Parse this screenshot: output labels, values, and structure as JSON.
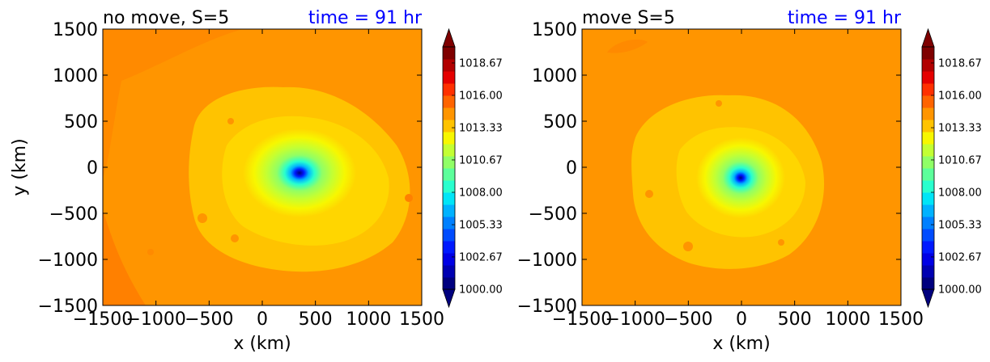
{
  "colors": {
    "title_right": "#0000ff",
    "text": "#000000",
    "colorbar": [
      "#00007f",
      "#0000b2",
      "#0000e5",
      "#0019ff",
      "#004cff",
      "#0080ff",
      "#00b2ff",
      "#00e5f7",
      "#29ffce",
      "#5cff9b",
      "#90ff66",
      "#c3ff33",
      "#f7f700",
      "#ffc300",
      "#ff9500",
      "#ff6400",
      "#ff3000",
      "#e50000",
      "#b20000",
      "#7f0000"
    ]
  },
  "chart_data": [
    {
      "type": "heatmap",
      "title_left": "no move, S=5",
      "title_right": "time = 91 hr",
      "xlabel": "x (km)",
      "ylabel": "y (km)",
      "xlim": [
        -1500,
        1500
      ],
      "ylim": [
        -1500,
        1500
      ],
      "xticks": [
        "−1500",
        "−1000",
        "−500",
        "0",
        "500",
        "1000",
        "1500"
      ],
      "yticks": [
        "1500",
        "1000",
        "500",
        "0",
        "−500",
        "−1000",
        "−1500"
      ],
      "center": [
        340,
        -70
      ],
      "min_pressure": 1000.0,
      "colorbar": {
        "vmin": 1000.0,
        "vmax": 1020.0,
        "tick_labels": [
          "1018.67",
          "1016.00",
          "1013.33",
          "1010.67",
          "1008.00",
          "1005.33",
          "1002.67",
          "1000.00"
        ],
        "extend": "both"
      }
    },
    {
      "type": "heatmap",
      "title_left": "move S=5",
      "title_right": "time = 91 hr",
      "xlabel": "x (km)",
      "ylabel": "",
      "xlim": [
        -1500,
        1500
      ],
      "ylim": [
        -1500,
        1500
      ],
      "xticks": [
        "−1500",
        "−1000",
        "−500",
        "0",
        "500",
        "1000",
        "1500"
      ],
      "yticks": [
        "1500",
        "1000",
        "500",
        "0",
        "−500",
        "−1000",
        "−1500"
      ],
      "center": [
        0,
        -120
      ],
      "min_pressure": 1000.5,
      "colorbar": {
        "vmin": 1000.0,
        "vmax": 1020.0,
        "tick_labels": [
          "1018.67",
          "1016.00",
          "1013.33",
          "1010.67",
          "1008.00",
          "1005.33",
          "1002.67",
          "1000.00"
        ],
        "extend": "both"
      }
    }
  ]
}
